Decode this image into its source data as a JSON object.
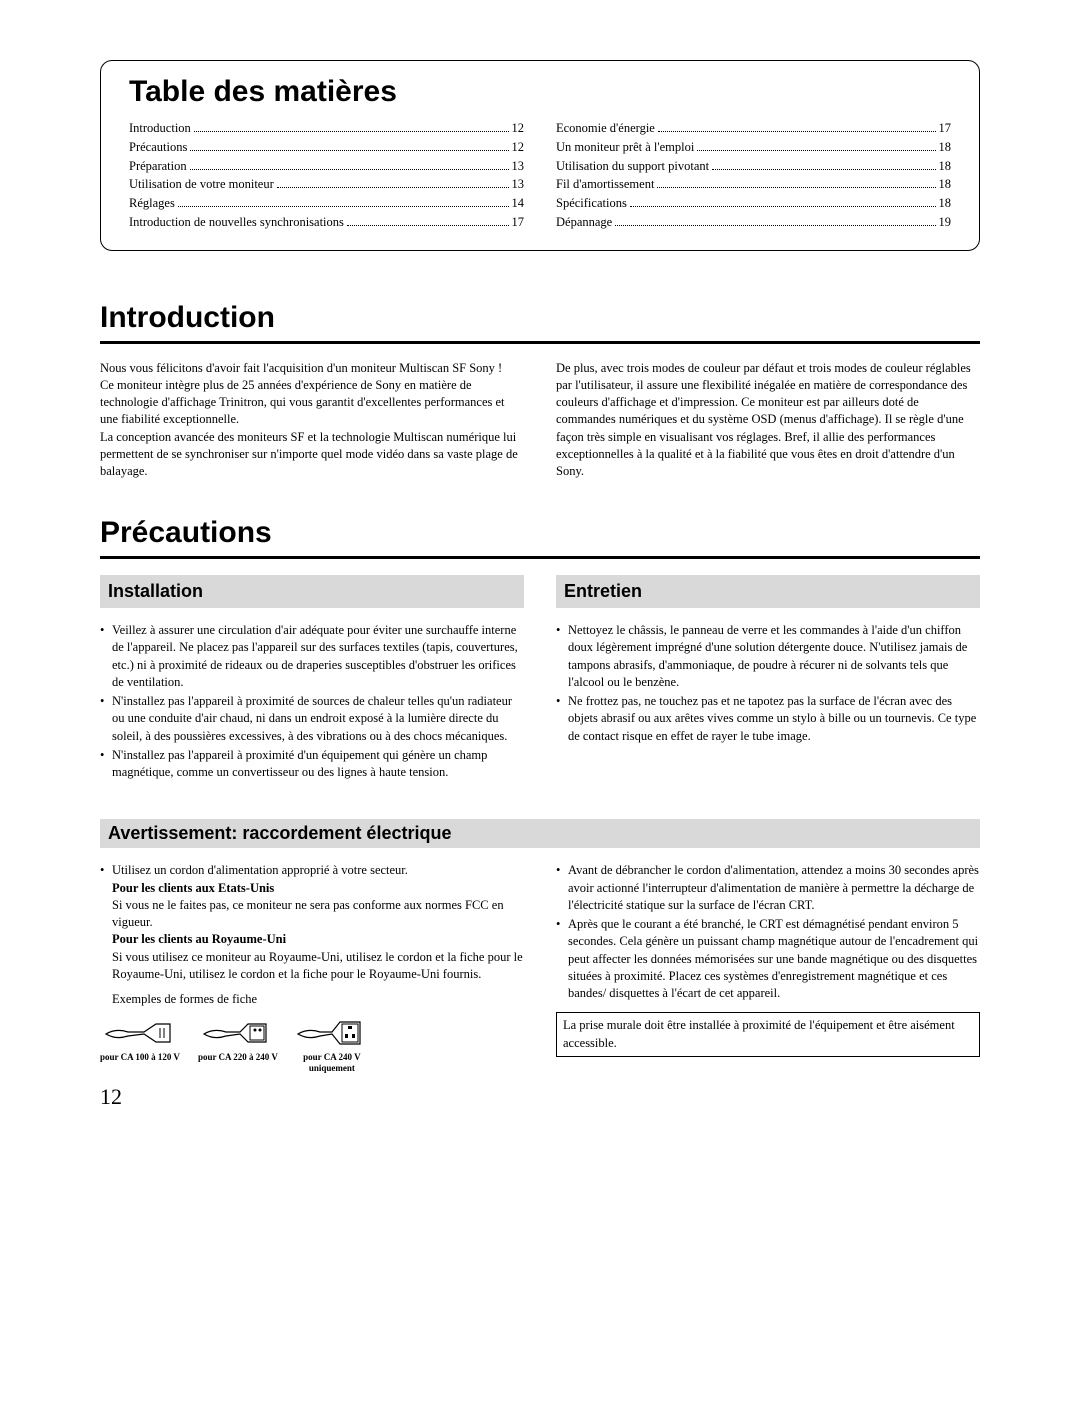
{
  "toc": {
    "title": "Table des matières",
    "left": [
      {
        "label": "Introduction",
        "page": "12"
      },
      {
        "label": "Précautions",
        "page": "12"
      },
      {
        "label": "Préparation",
        "page": "13"
      },
      {
        "label": "Utilisation de votre moniteur",
        "page": "13"
      },
      {
        "label": "Réglages",
        "page": "14"
      },
      {
        "label": "Introduction de nouvelles synchronisations",
        "page": "17"
      }
    ],
    "right": [
      {
        "label": "Economie d'énergie",
        "page": "17"
      },
      {
        "label": "Un moniteur prêt à l'emploi",
        "page": "18"
      },
      {
        "label": "Utilisation du support pivotant",
        "page": "18"
      },
      {
        "label": "Fil d'amortissement",
        "page": "18"
      },
      {
        "label": "Spécifications",
        "page": "18"
      },
      {
        "label": "Dépannage",
        "page": "19"
      }
    ]
  },
  "intro": {
    "heading": "Introduction",
    "left": "Nous vous félicitons d'avoir fait l'acquisition d'un moniteur Multiscan SF Sony !\nCe moniteur intègre plus de 25 années d'expérience de Sony en matière de technologie d'affichage Trinitron, qui vous garantit d'excellentes performances et une fiabilité exceptionnelle.\nLa conception avancée des moniteurs SF et la technologie Multiscan numérique lui permettent de se synchroniser sur n'importe quel mode vidéo dans sa vaste plage de balayage.",
    "right": "De plus, avec trois modes de couleur par défaut et trois modes de couleur réglables par l'utilisateur, il assure une flexibilité inégalée en matière de correspondance des couleurs d'affichage et d'impression. Ce moniteur est par ailleurs doté de commandes numériques et du système OSD (menus d'affichage). Il se règle d'une façon très simple en visualisant vos réglages. Bref, il allie des performances exceptionnelles à la qualité et à la fiabilité que vous êtes en droit d'attendre d'un Sony."
  },
  "precautions": {
    "heading": "Précautions",
    "installation": {
      "title": "Installation",
      "items": [
        "Veillez à assurer une circulation d'air adéquate pour éviter une surchauffe interne de l'appareil. Ne placez pas l'appareil sur des surfaces textiles (tapis, couvertures, etc.) ni à proximité de rideaux ou de draperies susceptibles d'obstruer les orifices de ventilation.",
        "N'installez pas l'appareil à proximité de sources de chaleur telles qu'un radiateur ou une conduite d'air chaud, ni dans un endroit exposé à la lumière directe du soleil, à des poussières excessives, à des vibrations ou à des chocs mécaniques.",
        "N'installez pas l'appareil à proximité d'un équipement qui génère un champ magnétique, comme un convertisseur ou des lignes à haute tension."
      ]
    },
    "entretien": {
      "title": "Entretien",
      "items": [
        "Nettoyez le châssis, le panneau de verre et les commandes à l'aide d'un chiffon doux légèrement imprégné d'une solution détergente douce. N'utilisez jamais de tampons abrasifs, d'ammoniaque, de poudre à récurer ni de solvants tels que l'alcool ou le benzène.",
        "Ne frottez pas, ne touchez pas et ne tapotez pas la surface de l'écran avec des objets abrasif ou aux arêtes vives comme un stylo à bille ou un tournevis. Ce type de contact risque en effet de rayer le tube image."
      ]
    }
  },
  "avert": {
    "title": "Avertissement: raccordement électrique",
    "left": {
      "bullet1": "Utilisez un cordon d'alimentation approprié à votre secteur.",
      "us_bold": "Pour les clients aux Etats-Unis",
      "us_text": "Si vous ne le faites pas, ce moniteur ne sera pas conforme aux normes FCC en vigueur.",
      "uk_bold": "Pour les clients au Royaume-Uni",
      "uk_text": "Si vous utilisez ce moniteur au Royaume-Uni, utilisez le cordon et la fiche pour le Royaume-Uni, utilisez le cordon et la fiche pour le Royaume-Uni fournis.",
      "examples": "Exemples de formes de fiche",
      "plug1": "pour CA 100 à 120 V",
      "plug2": "pour CA 220 à 240 V",
      "plug3a": "pour CA 240 V",
      "plug3b": "uniquement"
    },
    "right": {
      "items": [
        "Avant de débrancher le cordon d'alimentation, attendez a moins 30 secondes après avoir actionné l'interrupteur d'alimentation de manière à permettre la décharge de l'électricité statique sur la surface de l'écran CRT.",
        "Après que le courant a été branché, le CRT est démagnétisé pendant environ 5 secondes. Cela génère un puissant champ magnétique autour de l'encadrement qui peut affecter les données mémorisées sur une bande magnétique ou des disquettes situées à proximité. Placez ces systèmes d'enregistrement magnétique et ces bandes/ disquettes à l'écart de cet appareil."
      ],
      "note": "La prise murale doit être installée à proximité de l'équipement et être aisément accessible."
    }
  },
  "pageNumber": "12"
}
